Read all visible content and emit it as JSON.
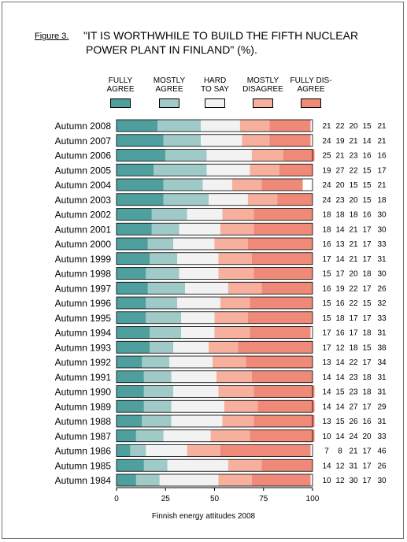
{
  "figure_label": "Figure 3.",
  "footer": "Finnish energy attitudes 2008",
  "colors": {
    "fully_agree": "#4e9f9e",
    "mostly_agree": "#9fcac8",
    "hard_to_say": "#f2f2f2",
    "mostly_disagree": "#f8b09e",
    "fully_disagree": "#f08a78",
    "border": "#6e6e6e"
  },
  "chart_data": {
    "type": "bar",
    "orientation": "horizontal",
    "stacked": true,
    "title_lines": [
      "\"IT IS WORTHWHILE TO BUILD THE FIFTH NUCLEAR",
      "POWER PLANT IN FINLAND\" (%)."
    ],
    "xlim": [
      0,
      100
    ],
    "xticks": [
      "0",
      "25",
      "50",
      "75",
      "100"
    ],
    "legend_placement": "top",
    "categories": [
      "Autumn 2008",
      "Autumn 2007",
      "Autumn 2006",
      "Autumn 2005",
      "Autumn 2004",
      "Autumn 2003",
      "Autumn 2002",
      "Autumn 2001",
      "Autumn 2000",
      "Autumn 1999",
      "Autumn 1998",
      "Autumn 1997",
      "Autumn 1996",
      "Autumn 1995",
      "Autumn 1994",
      "Autumn 1993",
      "Autumn 1992",
      "Autumn 1991",
      "Autumn 1990",
      "Autumn 1989",
      "Autumn 1988",
      "Autumn 1987",
      "Autumn 1986",
      "Autumn 1985",
      "Autumn 1984"
    ],
    "series": [
      {
        "name": "FULLY\nAGREE",
        "color_key": "fully_agree",
        "values": [
          21,
          24,
          25,
          19,
          24,
          24,
          18,
          18,
          16,
          17,
          15,
          16,
          15,
          15,
          17,
          17,
          13,
          14,
          14,
          14,
          13,
          10,
          7,
          14,
          10
        ]
      },
      {
        "name": "MOSTLY\nAGREE",
        "color_key": "mostly_agree",
        "values": [
          22,
          19,
          21,
          27,
          20,
          23,
          18,
          14,
          13,
          14,
          17,
          19,
          16,
          18,
          16,
          12,
          14,
          14,
          15,
          14,
          15,
          14,
          8,
          12,
          12
        ]
      },
      {
        "name": "HARD\nTO SAY",
        "color_key": "hard_to_say",
        "values": [
          20,
          21,
          23,
          22,
          15,
          20,
          18,
          21,
          21,
          21,
          20,
          22,
          22,
          17,
          17,
          18,
          22,
          23,
          23,
          27,
          26,
          24,
          21,
          31,
          30
        ]
      },
      {
        "name": "MOSTLY\nDISAGREE",
        "color_key": "mostly_disagree",
        "values": [
          15,
          14,
          16,
          15,
          15,
          15,
          16,
          17,
          17,
          17,
          18,
          17,
          15,
          17,
          18,
          15,
          17,
          18,
          18,
          17,
          16,
          20,
          17,
          17,
          17
        ]
      },
      {
        "name": "FULLY DIS-\nAGREE",
        "color_key": "fully_disagree",
        "values": [
          21,
          21,
          16,
          17,
          21,
          18,
          30,
          30,
          33,
          31,
          30,
          26,
          32,
          33,
          31,
          38,
          34,
          31,
          31,
          29,
          31,
          33,
          46,
          26,
          30
        ]
      }
    ]
  }
}
